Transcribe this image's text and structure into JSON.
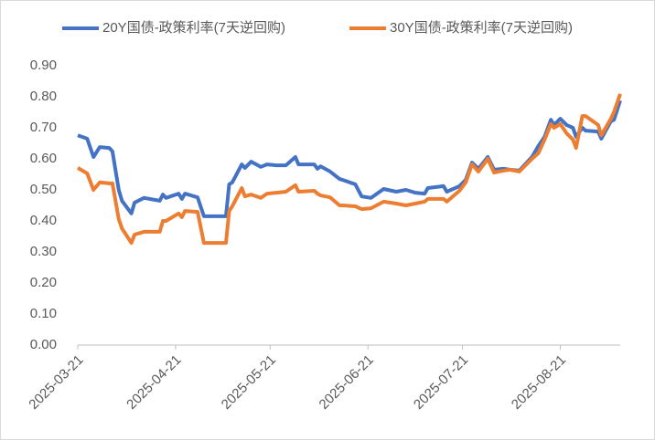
{
  "chart_data": {
    "type": "line",
    "x": [
      "2025-03-21",
      "2025-03-24",
      "2025-03-26",
      "2025-03-28",
      "2025-03-31",
      "2025-04-01",
      "2025-04-03",
      "2025-04-04",
      "2025-04-07",
      "2025-04-08",
      "2025-04-11",
      "2025-04-16",
      "2025-04-17",
      "2025-04-18",
      "2025-04-22",
      "2025-04-23",
      "2025-04-24",
      "2025-04-28",
      "2025-04-30",
      "2025-05-07",
      "2025-05-08",
      "2025-05-09",
      "2025-05-12",
      "2025-05-13",
      "2025-05-15",
      "2025-05-18",
      "2025-05-20",
      "2025-05-23",
      "2025-05-26",
      "2025-05-29",
      "2025-05-30",
      "2025-06-04",
      "2025-06-05",
      "2025-06-06",
      "2025-06-09",
      "2025-06-12",
      "2025-06-13",
      "2025-06-17",
      "2025-06-19",
      "2025-06-22",
      "2025-06-26",
      "2025-06-30",
      "2025-07-03",
      "2025-07-06",
      "2025-07-09",
      "2025-07-10",
      "2025-07-15",
      "2025-07-16",
      "2025-07-20",
      "2025-07-22",
      "2025-07-24",
      "2025-07-26",
      "2025-07-29",
      "2025-07-31",
      "2025-08-03",
      "2025-08-05",
      "2025-08-08",
      "2025-08-12",
      "2025-08-14",
      "2025-08-16",
      "2025-08-18",
      "2025-08-19",
      "2025-08-21",
      "2025-08-23",
      "2025-08-25",
      "2025-08-26",
      "2025-08-28",
      "2025-08-29",
      "2025-09-02",
      "2025-09-03",
      "2025-09-06",
      "2025-09-07",
      "2025-09-09"
    ],
    "series": [
      {
        "name": "20Y国债-政策利率(7天逆回购)",
        "color": "#4472c4",
        "values": [
          0.676,
          0.665,
          0.606,
          0.638,
          0.635,
          0.624,
          0.5,
          0.465,
          0.424,
          0.459,
          0.474,
          0.465,
          0.485,
          0.474,
          0.488,
          0.471,
          0.488,
          0.476,
          0.415,
          0.415,
          0.518,
          0.524,
          0.582,
          0.571,
          0.591,
          0.574,
          0.582,
          0.579,
          0.579,
          0.606,
          0.582,
          0.582,
          0.568,
          0.576,
          0.559,
          0.535,
          0.532,
          0.518,
          0.479,
          0.474,
          0.503,
          0.494,
          0.5,
          0.491,
          0.488,
          0.506,
          0.512,
          0.494,
          0.512,
          0.532,
          0.588,
          0.568,
          0.606,
          0.565,
          0.568,
          0.565,
          0.562,
          0.606,
          0.641,
          0.671,
          0.726,
          0.709,
          0.729,
          0.709,
          0.7,
          0.671,
          0.7,
          0.691,
          0.688,
          0.665,
          0.721,
          0.726,
          0.788
        ]
      },
      {
        "name": "30Y国债-政策利率(7天逆回购)",
        "color": "#ed7d31",
        "values": [
          0.571,
          0.553,
          0.5,
          0.524,
          0.521,
          0.521,
          0.406,
          0.376,
          0.329,
          0.356,
          0.365,
          0.365,
          0.4,
          0.4,
          0.424,
          0.412,
          0.432,
          0.429,
          0.329,
          0.329,
          0.432,
          0.447,
          0.506,
          0.479,
          0.485,
          0.474,
          0.488,
          0.491,
          0.494,
          0.515,
          0.494,
          0.497,
          0.488,
          0.482,
          0.476,
          0.45,
          0.45,
          0.447,
          0.438,
          0.441,
          0.462,
          0.456,
          0.45,
          0.456,
          0.462,
          0.471,
          0.471,
          0.462,
          0.497,
          0.524,
          0.582,
          0.559,
          0.6,
          0.556,
          0.562,
          0.565,
          0.559,
          0.6,
          0.618,
          0.662,
          0.712,
          0.7,
          0.712,
          0.682,
          0.662,
          0.635,
          0.738,
          0.738,
          0.709,
          0.676,
          0.729,
          0.75,
          0.809
        ]
      }
    ],
    "xlim": [
      "2025-03-21",
      "2025-09-09"
    ],
    "xticks": [
      "2025-03-21",
      "2025-04-21",
      "2025-05-21",
      "2025-06-21",
      "2025-07-21",
      "2025-08-21"
    ],
    "ylim": [
      0,
      0.9
    ],
    "yticks": [
      {
        "value": 0,
        "label": "0.00"
      },
      {
        "value": 0.1,
        "label": "0.10"
      },
      {
        "value": 0.2,
        "label": "0.20"
      },
      {
        "value": 0.3,
        "label": "0.30"
      },
      {
        "value": 0.4,
        "label": "0.40"
      },
      {
        "value": 0.5,
        "label": "0.50"
      },
      {
        "value": 0.6,
        "label": "0.60"
      },
      {
        "value": 0.7,
        "label": "0.70"
      },
      {
        "value": 0.8,
        "label": "0.80"
      },
      {
        "value": 0.9,
        "label": "0.90"
      }
    ],
    "grid": false,
    "legend": "top"
  }
}
